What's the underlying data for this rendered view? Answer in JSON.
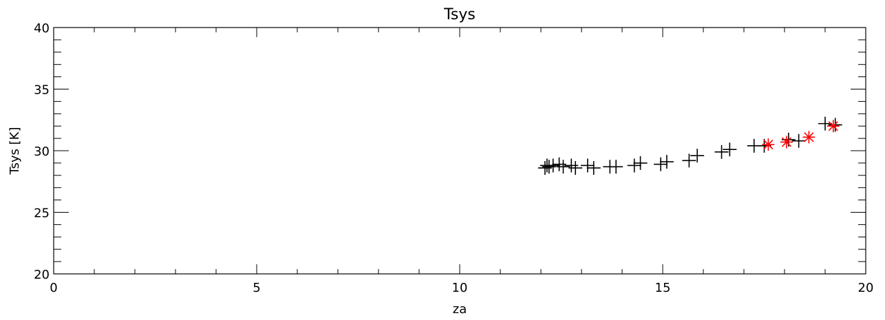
{
  "chart_data": {
    "type": "scatter",
    "title": "Tsys",
    "xlabel": "za",
    "ylabel": "Tsys [K]",
    "xlim": [
      0,
      20
    ],
    "ylim": [
      20,
      40
    ],
    "x_ticks": [
      0,
      5,
      10,
      15,
      20
    ],
    "y_ticks": [
      20,
      25,
      30,
      35,
      40
    ],
    "x_minor_step": 1,
    "y_minor_step": 1,
    "grid": false,
    "legend": "none",
    "colors": {
      "plus_marker": "#000000",
      "star_marker": "#ff0000"
    },
    "series": [
      {
        "marker": "plus",
        "color": "#000000",
        "points": [
          [
            12.1,
            28.6
          ],
          [
            12.15,
            28.8
          ],
          [
            12.2,
            28.7
          ],
          [
            12.3,
            28.8
          ],
          [
            12.45,
            28.9
          ],
          [
            12.55,
            28.7
          ],
          [
            12.75,
            28.8
          ],
          [
            12.85,
            28.6
          ],
          [
            13.15,
            28.8
          ],
          [
            13.3,
            28.6
          ],
          [
            13.7,
            28.7
          ],
          [
            13.85,
            28.7
          ],
          [
            14.3,
            28.8
          ],
          [
            14.45,
            29.0
          ],
          [
            14.95,
            28.9
          ],
          [
            15.1,
            29.1
          ],
          [
            15.65,
            29.2
          ],
          [
            15.85,
            29.6
          ],
          [
            16.45,
            29.9
          ],
          [
            16.65,
            30.1
          ],
          [
            17.25,
            30.4
          ],
          [
            17.5,
            30.4
          ],
          [
            18.1,
            30.9
          ],
          [
            18.35,
            30.8
          ],
          [
            19.0,
            32.2
          ],
          [
            19.25,
            32.1
          ]
        ]
      },
      {
        "marker": "star",
        "color": "#ff0000",
        "points": [
          [
            17.6,
            30.5
          ],
          [
            18.05,
            30.7
          ],
          [
            18.6,
            31.1
          ],
          [
            19.2,
            32.0
          ]
        ]
      }
    ]
  }
}
